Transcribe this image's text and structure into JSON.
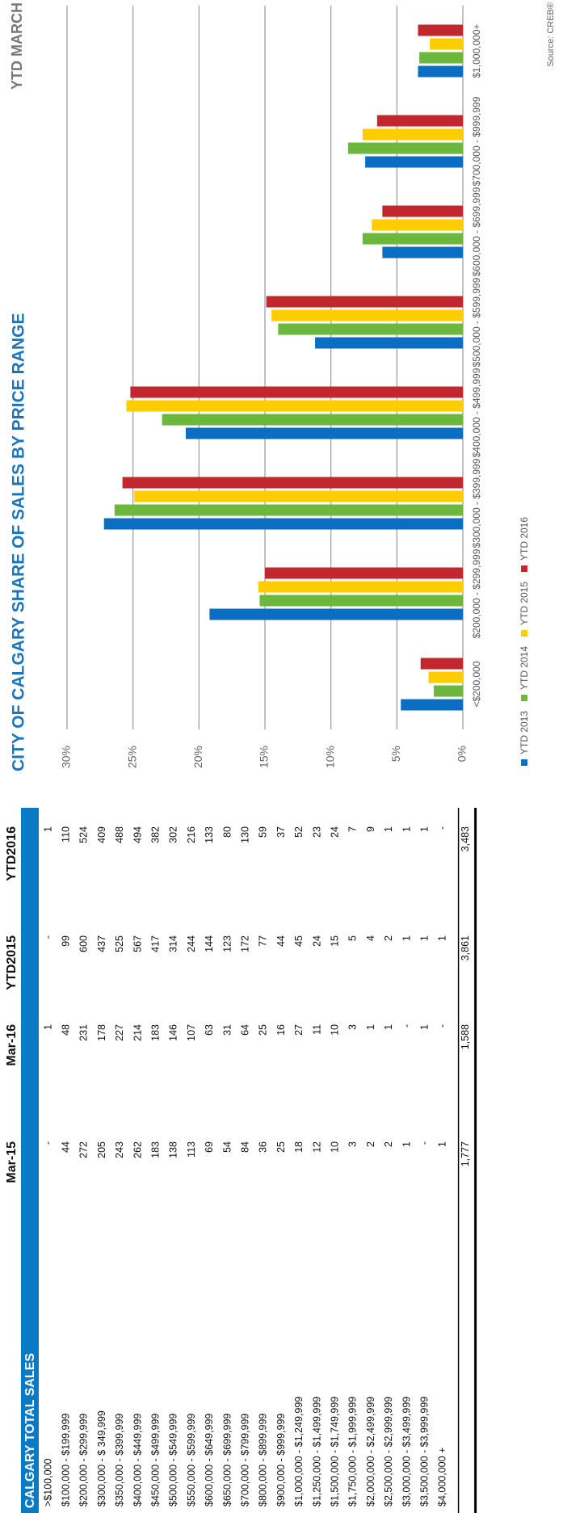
{
  "table": {
    "title": "CALGARY TOTAL SALES",
    "columns": [
      "Mar-15",
      "Mar-16",
      "YTD2015",
      "YTD2016"
    ],
    "rows": [
      {
        "label": ">$100,000",
        "values": [
          "-",
          "1",
          "-",
          "1"
        ]
      },
      {
        "label": "$100,000 - $199,999",
        "values": [
          "44",
          "48",
          "99",
          "110"
        ]
      },
      {
        "label": "$200,000 - $299,999",
        "values": [
          "272",
          "231",
          "600",
          "524"
        ]
      },
      {
        "label": "$300,000 - $ 349,999",
        "values": [
          "205",
          "178",
          "437",
          "409"
        ]
      },
      {
        "label": "$350,000 - $399,999",
        "values": [
          "243",
          "227",
          "525",
          "488"
        ]
      },
      {
        "label": "$400,000 - $449,999",
        "values": [
          "262",
          "214",
          "567",
          "494"
        ]
      },
      {
        "label": "$450,000 - $499,999",
        "values": [
          "183",
          "183",
          "417",
          "382"
        ]
      },
      {
        "label": "$500,000 - $549,999",
        "values": [
          "138",
          "146",
          "314",
          "302"
        ]
      },
      {
        "label": "$550,000 - $599,999",
        "values": [
          "113",
          "107",
          "244",
          "216"
        ]
      },
      {
        "label": "$600,000 - $649,999",
        "values": [
          "69",
          "63",
          "144",
          "133"
        ]
      },
      {
        "label": "$650,000 - $699,999",
        "values": [
          "54",
          "31",
          "123",
          "80"
        ]
      },
      {
        "label": "$700,000 - $799,999",
        "values": [
          "84",
          "64",
          "172",
          "130"
        ]
      },
      {
        "label": "$800,000 - $899,999",
        "values": [
          "36",
          "25",
          "77",
          "59"
        ]
      },
      {
        "label": "$900,000 - $999,999",
        "values": [
          "25",
          "16",
          "44",
          "37"
        ]
      },
      {
        "label": "$1,000,000 - $1,249,999",
        "values": [
          "18",
          "27",
          "45",
          "52"
        ]
      },
      {
        "label": "$1,250,000 - $1,499,999",
        "values": [
          "12",
          "11",
          "24",
          "23"
        ]
      },
      {
        "label": "$1,500,000 - $1,749,999",
        "values": [
          "10",
          "10",
          "15",
          "24"
        ]
      },
      {
        "label": "$1,750,000 - $1,999,999",
        "values": [
          "3",
          "3",
          "5",
          "7"
        ]
      },
      {
        "label": "$2,000,000 - $2,499,999",
        "values": [
          "2",
          "1",
          "4",
          "9"
        ]
      },
      {
        "label": "$2,500,000 - $2,999,999",
        "values": [
          "2",
          "1",
          "2",
          "1"
        ]
      },
      {
        "label": "$3,000,000 - $3,499,999",
        "values": [
          "1",
          "-",
          "1",
          "1"
        ]
      },
      {
        "label": "$3,500,000 - $3,999,999",
        "values": [
          "-",
          "1",
          "1",
          "1"
        ]
      },
      {
        "label": "$4,000,000 +",
        "values": [
          "1",
          "-",
          "1",
          "-"
        ]
      }
    ],
    "totals": [
      "1,777",
      "1,588",
      "3,861",
      "3,483"
    ]
  },
  "chart_data": {
    "type": "bar",
    "title": "CITY OF CALGARY SHARE OF SALES BY PRICE RANGE",
    "subtitle": "YTD MARCH",
    "categories": [
      "<$200,000",
      "$200,000 - $299,999",
      "$300,000 - $399,999",
      "$400,000 - $499,999",
      "$500,000 - $599,999",
      "$600,000 - $699,999",
      "$700,000 - $999,999",
      "$1,000,000+"
    ],
    "series": [
      {
        "name": "YTD 2013",
        "color": "#0a6fc2",
        "values": [
          4.7,
          19.2,
          27.2,
          21.0,
          11.2,
          6.1,
          7.4,
          3.4
        ]
      },
      {
        "name": "YTD 2014",
        "color": "#6cb83f",
        "values": [
          2.2,
          15.4,
          26.4,
          22.8,
          14.0,
          7.6,
          8.7,
          3.3
        ]
      },
      {
        "name": "YTD 2015",
        "color": "#ffcc00",
        "values": [
          2.6,
          15.5,
          24.9,
          25.5,
          14.5,
          6.9,
          7.6,
          2.5
        ]
      },
      {
        "name": "YTD 2016",
        "color": "#c1272d",
        "values": [
          3.2,
          15.0,
          25.8,
          25.2,
          14.9,
          6.1,
          6.5,
          3.4
        ]
      }
    ],
    "ylim": [
      0,
      30
    ],
    "yticks": [
      {
        "value": 0,
        "label": "0%"
      },
      {
        "value": 5,
        "label": "5%"
      },
      {
        "value": 10,
        "label": "10%"
      },
      {
        "value": 15,
        "label": "15%"
      },
      {
        "value": 20,
        "label": "20%"
      },
      {
        "value": 25,
        "label": "25%"
      },
      {
        "value": 30,
        "label": "30%"
      }
    ],
    "grid": true,
    "source": "Source: CREB®"
  }
}
